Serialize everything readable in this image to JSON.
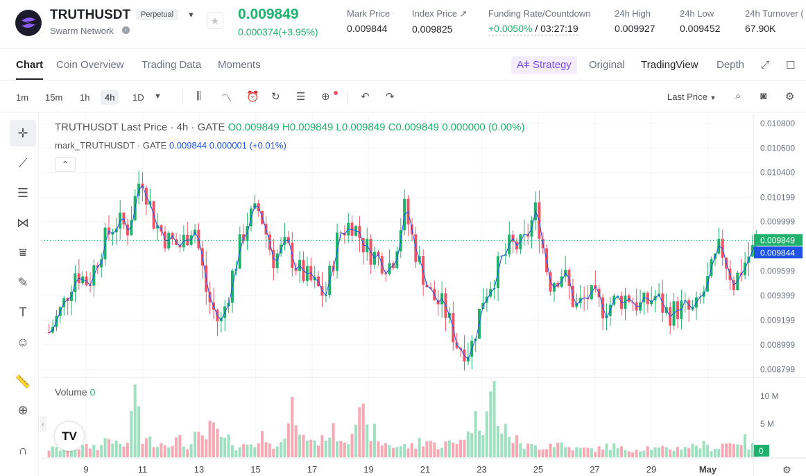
{
  "header": {
    "symbol": "TRUTHUSDT",
    "badge": "Perpetual",
    "network": "Swarm Network",
    "last_price": "0.009849",
    "change": "0.000374(+3.95%)",
    "stats": [
      {
        "label": "Mark Price",
        "value": "0.009844"
      },
      {
        "label": "Index Price ↗",
        "value": "0.009825"
      },
      {
        "label": "Funding Rate/Countdown",
        "value_rate": "+0.0050%",
        "value_countdown": " / 03:27:19"
      },
      {
        "label": "24h High",
        "value": "0.009927"
      },
      {
        "label": "24h Low",
        "value": "0.009452"
      },
      {
        "label": "24h Turnover (",
        "value": "67.90K"
      }
    ],
    "colors": {
      "up": "#20b26c",
      "down": "#ef5466",
      "mark": "#1e53e5",
      "strategy": "#7b4cf6"
    }
  },
  "tabs": [
    "Chart",
    "Coin Overview",
    "Trading Data",
    "Moments"
  ],
  "view_tabs": {
    "strategy": "Strategy",
    "original": "Original",
    "tradingview": "TradingView",
    "depth": "Depth"
  },
  "toolbar": {
    "timeframes": [
      "1m",
      "15m",
      "1h",
      "4h",
      "1D"
    ],
    "active_timeframe": "4h",
    "last_price_label": "Last Price",
    "icons": [
      "candles-icon",
      "indicators-icon",
      "alert-icon",
      "replay-icon",
      "layout-icon",
      "add-icon",
      "undo-icon",
      "redo-icon",
      "search-icon",
      "camera-icon",
      "settings-icon"
    ]
  },
  "left_tools": [
    "crosshair-icon",
    "trendline-icon",
    "fib-icon",
    "pattern-icon",
    "projection-icon",
    "brush-icon",
    "text-icon",
    "emoji-icon",
    "ruler-icon",
    "zoom-icon",
    "magnet-icon"
  ],
  "legend": {
    "main": "TRUTHUSDT Last Price · 4h · GATE",
    "o_label": "O",
    "o": "0.009849",
    "h_label": "H",
    "h": "0.009849",
    "l_label": "L",
    "l": "0.009849",
    "c_label": "C",
    "c": "0.009849",
    "chg": "0.000000 (0.00%)",
    "mark_name": "mark_TRUTHUSDT · GATE",
    "mark_value": "0.009844",
    "mark_chg": "0.000001",
    "mark_pct": "(+0.01%)"
  },
  "volume": {
    "label": "Volume",
    "value": "0"
  },
  "chart_data": {
    "type": "candlestick",
    "y_ticks": [
      "0.010800",
      "0.010600",
      "0.010400",
      "0.010199",
      "0.009999",
      "0.009599",
      "0.009399",
      "0.009199",
      "0.008999",
      "0.008799"
    ],
    "ylim": [
      0.00875,
      0.01085
    ],
    "last_label": "0.009849",
    "mark_label": "0.009844",
    "vol_ticks": [
      "10 M",
      "5 M"
    ],
    "vol_last_label": "0",
    "x_ticks": [
      "9",
      "11",
      "13",
      "15",
      "17",
      "19",
      "21",
      "23",
      "25",
      "27",
      "29",
      "May"
    ],
    "price_path": [
      0.0091,
      0.0093,
      0.0096,
      0.0095,
      0.0098,
      0.01,
      0.00995,
      0.0104,
      0.01,
      0.00985,
      0.0098,
      0.01,
      0.0094,
      0.00915,
      0.0096,
      0.01,
      0.0101,
      0.0097,
      0.0098,
      0.0096,
      0.0095,
      0.0094,
      0.0099,
      0.01,
      0.0098,
      0.0097,
      0.00965,
      0.0101,
      0.0097,
      0.0094,
      0.0093,
      0.009,
      0.00895,
      0.0094,
      0.0096,
      0.0098,
      0.0098,
      0.0101,
      0.0095,
      0.0096,
      0.0093,
      0.0094,
      0.0093,
      0.00935,
      0.0094,
      0.0093,
      0.0094,
      0.00925,
      0.0093,
      0.00925,
      0.0095,
      0.0098,
      0.0095,
      0.0097,
      0.00985
    ],
    "volume_path": [
      1.5,
      2.5,
      1.8,
      2.0,
      3.5,
      2.2,
      9.5,
      3.0,
      2.6,
      3.0,
      2.2,
      3.5,
      5.0,
      3.0,
      2.0,
      2.5,
      4.0,
      2.5,
      8.0,
      3.5,
      3.0,
      4.5,
      3.5,
      7.0,
      4.5,
      2.5,
      2.0,
      2.0,
      3.0,
      2.2,
      2.5,
      4.0,
      6.5,
      12.0,
      5.0,
      3.0,
      2.0,
      2.0,
      2.5,
      1.8,
      1.5,
      1.5,
      2.0,
      1.5,
      1.5,
      1.8,
      1.5,
      1.6,
      2.0,
      2.2,
      1.8,
      2.5,
      3.0,
      2.0,
      1.5
    ]
  }
}
